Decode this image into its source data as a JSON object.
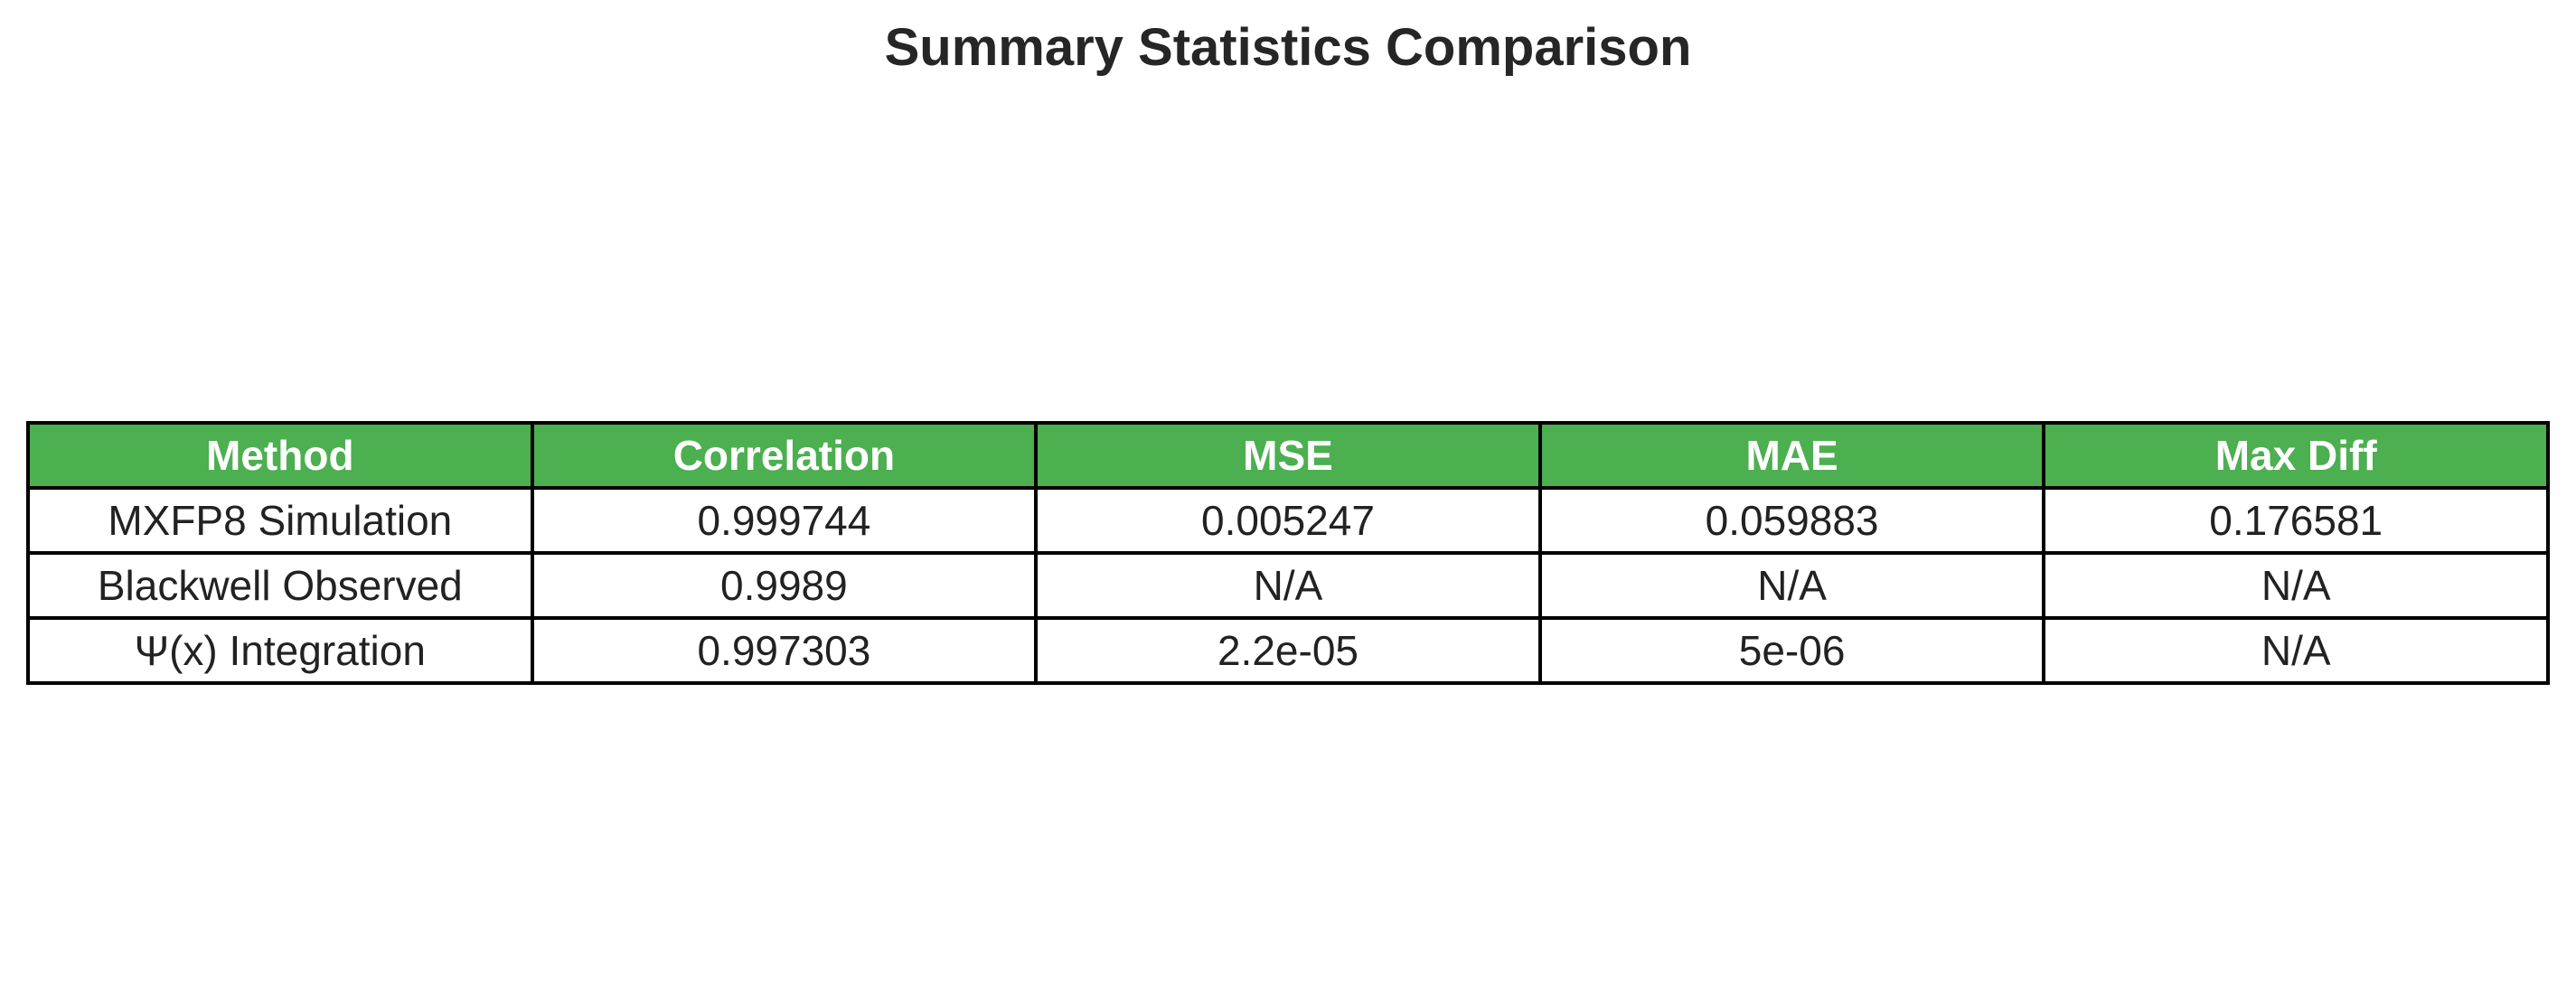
{
  "colors": {
    "header_bg": "#4caf50",
    "header_text": "#ffffff",
    "border": "#000000",
    "cell_text": "#222222"
  },
  "chart_data": {
    "type": "table",
    "title": "Summary Statistics Comparison",
    "columns": [
      "Method",
      "Correlation",
      "MSE",
      "MAE",
      "Max Diff"
    ],
    "rows": [
      [
        "MXFP8 Simulation",
        "0.999744",
        "0.005247",
        "0.059883",
        "0.176581"
      ],
      [
        "Blackwell Observed",
        "0.9989",
        "N/A",
        "N/A",
        "N/A"
      ],
      [
        "Ψ(x) Integration",
        "0.997303",
        "2.2e-05",
        "5e-06",
        "N/A"
      ]
    ]
  }
}
